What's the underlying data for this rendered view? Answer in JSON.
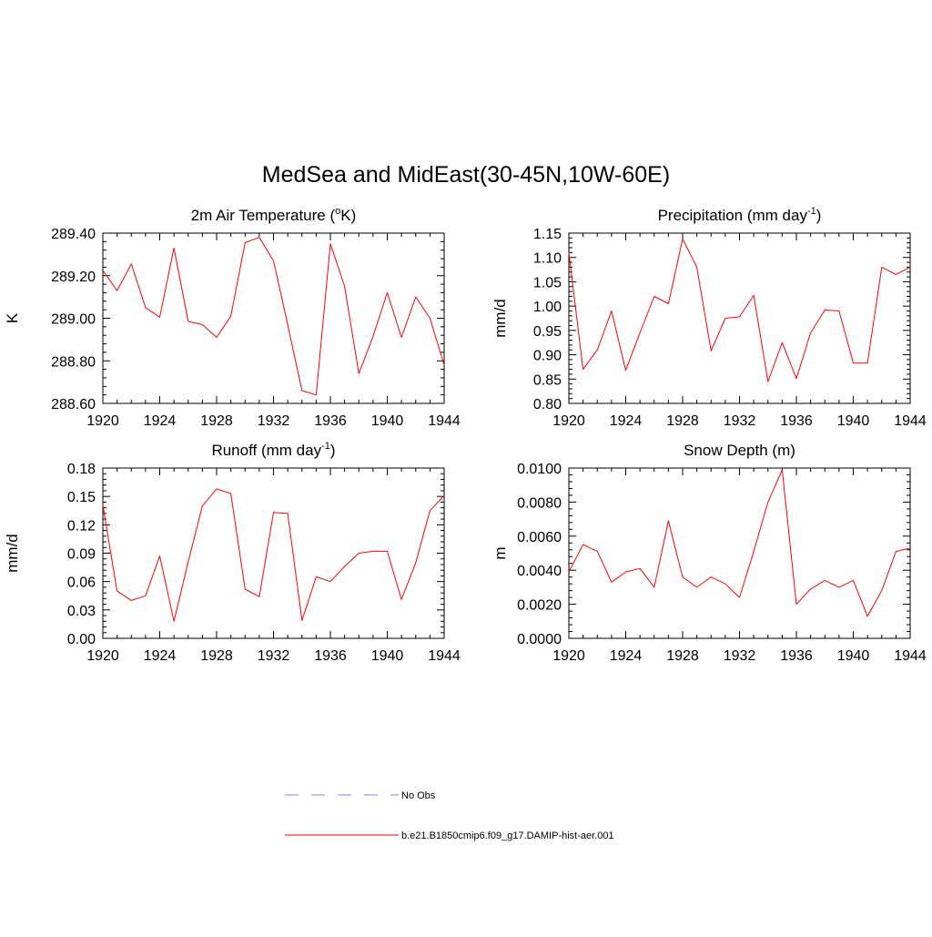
{
  "figure_title": "MedSea and MidEast(30-45N,10W-60E)",
  "colors": {
    "model_line": "#ff0000",
    "obs_line": "#9999ff",
    "axis": "#000000"
  },
  "legend": {
    "items": [
      {
        "label": "No Obs",
        "style": "dashed",
        "color": "#9999ff"
      },
      {
        "label": "b.e21.B1850cmip6.f09_g17.DAMIP-hist-aer.001",
        "style": "solid",
        "color": "#ff0000"
      }
    ]
  },
  "chart_data": [
    {
      "type": "line",
      "title": "2m Air Temperature (",
      "title_sup": "o",
      "title_suffix": "K)",
      "xlabel": "",
      "ylabel": "K",
      "xlim": [
        1920,
        1944
      ],
      "ylim": [
        288.6,
        289.4
      ],
      "x_ticks": [
        1920,
        1924,
        1928,
        1932,
        1936,
        1940,
        1944
      ],
      "y_ticks": [
        "288.60",
        "288.80",
        "289.00",
        "289.20",
        "289.40"
      ],
      "x": [
        1920,
        1921,
        1922,
        1923,
        1924,
        1925,
        1926,
        1927,
        1928,
        1929,
        1930,
        1931,
        1932,
        1933,
        1934,
        1935,
        1936,
        1937,
        1938,
        1939,
        1940,
        1941,
        1942,
        1943,
        1944
      ],
      "series": [
        {
          "name": "b.e21.B1850cmip6.f09_g17.DAMIP-hist-aer.001",
          "values": [
            289.225,
            289.13,
            289.255,
            289.05,
            289.005,
            289.33,
            288.985,
            288.97,
            288.91,
            289.01,
            289.355,
            289.38,
            289.27,
            288.97,
            288.66,
            288.64,
            289.35,
            289.15,
            288.74,
            288.915,
            289.12,
            288.91,
            289.1,
            289.0,
            288.78
          ]
        }
      ]
    },
    {
      "type": "line",
      "title": "Precipitation (mm day",
      "title_sup": "-1",
      "title_suffix": ")",
      "xlabel": "",
      "ylabel": "mm/d",
      "xlim": [
        1920,
        1944
      ],
      "ylim": [
        0.8,
        1.15
      ],
      "x_ticks": [
        1920,
        1924,
        1928,
        1932,
        1936,
        1940,
        1944
      ],
      "y_ticks": [
        "0.80",
        "0.85",
        "0.90",
        "0.95",
        "1.00",
        "1.05",
        "1.10",
        "1.15"
      ],
      "x": [
        1920,
        1921,
        1922,
        1923,
        1924,
        1925,
        1926,
        1927,
        1928,
        1929,
        1930,
        1931,
        1932,
        1933,
        1934,
        1935,
        1936,
        1937,
        1938,
        1939,
        1940,
        1941,
        1942,
        1943,
        1944
      ],
      "series": [
        {
          "name": "b.e21.B1850cmip6.f09_g17.DAMIP-hist-aer.001",
          "values": [
            1.11,
            0.87,
            0.91,
            0.99,
            0.868,
            0.945,
            1.02,
            1.005,
            1.138,
            1.08,
            0.908,
            0.975,
            0.978,
            1.022,
            0.845,
            0.925,
            0.851,
            0.945,
            0.992,
            0.99,
            0.883,
            0.883,
            1.08,
            1.065,
            1.08
          ]
        }
      ]
    },
    {
      "type": "line",
      "title": "Runoff (mm day",
      "title_sup": "-1",
      "title_suffix": ")",
      "xlabel": "",
      "ylabel": "mm/d",
      "xlim": [
        1920,
        1944
      ],
      "ylim": [
        0.0,
        0.18
      ],
      "x_ticks": [
        1920,
        1924,
        1928,
        1932,
        1936,
        1940,
        1944
      ],
      "y_ticks": [
        "0.00",
        "0.03",
        "0.06",
        "0.09",
        "0.12",
        "0.15",
        "0.18"
      ],
      "x": [
        1920,
        1921,
        1922,
        1923,
        1924,
        1925,
        1926,
        1927,
        1928,
        1929,
        1930,
        1931,
        1932,
        1933,
        1934,
        1935,
        1936,
        1937,
        1938,
        1939,
        1940,
        1941,
        1942,
        1943,
        1944
      ],
      "series": [
        {
          "name": "b.e21.B1850cmip6.f09_g17.DAMIP-hist-aer.001",
          "values": [
            0.141,
            0.05,
            0.04,
            0.045,
            0.087,
            0.018,
            0.081,
            0.14,
            0.158,
            0.153,
            0.052,
            0.044,
            0.133,
            0.132,
            0.019,
            0.065,
            0.06,
            0.076,
            0.09,
            0.092,
            0.092,
            0.041,
            0.08,
            0.135,
            0.151
          ]
        }
      ]
    },
    {
      "type": "line",
      "title": "Snow Depth (m)",
      "title_sup": "",
      "title_suffix": "",
      "xlabel": "",
      "ylabel": "m",
      "xlim": [
        1920,
        1944
      ],
      "ylim": [
        0.0,
        0.01
      ],
      "x_ticks": [
        1920,
        1924,
        1928,
        1932,
        1936,
        1940,
        1944
      ],
      "y_ticks": [
        "0.0000",
        "0.0020",
        "0.0040",
        "0.0060",
        "0.0080",
        "0.0100"
      ],
      "x": [
        1920,
        1921,
        1922,
        1923,
        1924,
        1925,
        1926,
        1927,
        1928,
        1929,
        1930,
        1931,
        1932,
        1933,
        1934,
        1935,
        1936,
        1937,
        1938,
        1939,
        1940,
        1941,
        1942,
        1943,
        1944
      ],
      "series": [
        {
          "name": "b.e21.B1850cmip6.f09_g17.DAMIP-hist-aer.001",
          "values": [
            0.0039,
            0.0055,
            0.0051,
            0.0033,
            0.0039,
            0.0041,
            0.003,
            0.0069,
            0.0036,
            0.003,
            0.0036,
            0.0032,
            0.0024,
            0.0051,
            0.008,
            0.0099,
            0.002,
            0.0029,
            0.0034,
            0.003,
            0.0034,
            0.0013,
            0.0028,
            0.0051,
            0.0053
          ]
        }
      ]
    }
  ]
}
